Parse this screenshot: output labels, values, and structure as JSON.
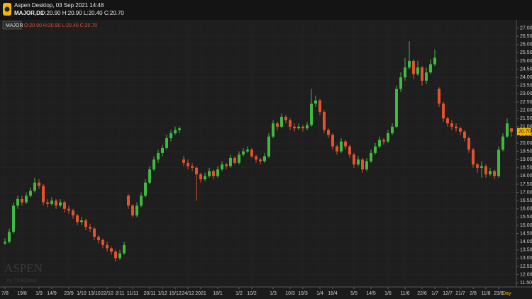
{
  "header": {
    "app": "Aspen Desktop, 03 Sep 2021 14:48",
    "symbol": "MAJOR,D1",
    "ohlc": "O:20.90 H:20.90 L:20.40 C:20.70"
  },
  "watermark": {
    "brand": "ASPEN",
    "by": "by ThaiQuest"
  },
  "chart_data": {
    "type": "candlestick",
    "up_color": "#3fb93f",
    "down_color": "#e2532d",
    "grid": true,
    "period": "Day",
    "last_price": {
      "value": 20.7,
      "label": "20.70"
    },
    "xlim": [
      -0.5,
      119.5
    ],
    "ylim": [
      11.25,
      27.5
    ],
    "xticks": [
      {
        "value": 0,
        "label": "7/8"
      },
      {
        "value": 4,
        "label": "19/8"
      },
      {
        "value": 8,
        "label": "1/9"
      },
      {
        "value": 11,
        "label": "14/9"
      },
      {
        "value": 15,
        "label": "23/9"
      },
      {
        "value": 18,
        "label": "1/10"
      },
      {
        "value": 21,
        "label": "13/10"
      },
      {
        "value": 24,
        "label": "22/10"
      },
      {
        "value": 27,
        "label": "2/11"
      },
      {
        "value": 30,
        "label": "11/11"
      },
      {
        "value": 34,
        "label": "20/11"
      },
      {
        "value": 37,
        "label": "1/12"
      },
      {
        "value": 40,
        "label": "15/12"
      },
      {
        "value": 43,
        "label": "24/12"
      },
      {
        "value": 46,
        "label": "2021"
      },
      {
        "value": 50,
        "label": "18/1"
      },
      {
        "value": 55,
        "label": "1/2"
      },
      {
        "value": 58,
        "label": "10/2"
      },
      {
        "value": 63,
        "label": "1/3"
      },
      {
        "value": 67,
        "label": "10/3"
      },
      {
        "value": 70,
        "label": "19/3"
      },
      {
        "value": 74,
        "label": "1/4"
      },
      {
        "value": 77,
        "label": "16/4"
      },
      {
        "value": 82,
        "label": "5/5"
      },
      {
        "value": 86,
        "label": "14/5"
      },
      {
        "value": 90,
        "label": "1/6"
      },
      {
        "value": 94,
        "label": "11/6"
      },
      {
        "value": 98,
        "label": "22/6"
      },
      {
        "value": 101,
        "label": "1/7"
      },
      {
        "value": 104,
        "label": "12/7"
      },
      {
        "value": 107,
        "label": "21/7"
      },
      {
        "value": 110,
        "label": "2/8"
      },
      {
        "value": 113,
        "label": "11/8"
      },
      {
        "value": 116,
        "label": "23/8"
      }
    ],
    "yticks": [
      {
        "value": 11.5,
        "label": "11.50"
      },
      {
        "value": 12,
        "label": "12.00"
      },
      {
        "value": 12.5,
        "label": "12.50"
      },
      {
        "value": 13,
        "label": "13.00"
      },
      {
        "value": 13.5,
        "label": "13.50"
      },
      {
        "value": 14,
        "label": "14.00"
      },
      {
        "value": 14.5,
        "label": "14.50"
      },
      {
        "value": 15,
        "label": "15.00"
      },
      {
        "value": 15.5,
        "label": "15.50"
      },
      {
        "value": 16,
        "label": "16.00"
      },
      {
        "value": 16.5,
        "label": "16.50"
      },
      {
        "value": 17,
        "label": "17.00"
      },
      {
        "value": 17.5,
        "label": "17.50"
      },
      {
        "value": 18,
        "label": "18.00"
      },
      {
        "value": 18.5,
        "label": "18.50"
      },
      {
        "value": 19,
        "label": "19.00"
      },
      {
        "value": 19.5,
        "label": "19.50"
      },
      {
        "value": 20,
        "label": "20.00"
      },
      {
        "value": 20.5,
        "label": "20.50"
      },
      {
        "value": 21,
        "label": "21.00"
      },
      {
        "value": 21.5,
        "label": "21.50"
      },
      {
        "value": 22,
        "label": "22.00"
      },
      {
        "value": 22.5,
        "label": "22.50"
      },
      {
        "value": 23,
        "label": "23.00"
      },
      {
        "value": 23.5,
        "label": "23.50"
      },
      {
        "value": 24,
        "label": "24.00"
      },
      {
        "value": 24.5,
        "label": "24.50"
      },
      {
        "value": 25,
        "label": "25.00"
      },
      {
        "value": 25.5,
        "label": "25.50"
      },
      {
        "value": 26,
        "label": "26.00"
      },
      {
        "value": 26.5,
        "label": "26.50"
      },
      {
        "value": 27,
        "label": "27.00"
      }
    ],
    "series": [
      {
        "name": "MAJOR",
        "values": [
          [
            13.9,
            14.2,
            13.8,
            14.0
          ],
          [
            14.0,
            14.8,
            13.9,
            14.6
          ],
          [
            14.6,
            16.4,
            14.5,
            16.2
          ],
          [
            16.2,
            16.8,
            16.0,
            16.6
          ],
          [
            16.6,
            16.8,
            16.2,
            16.4
          ],
          [
            16.4,
            17.0,
            16.3,
            16.8
          ],
          [
            16.8,
            17.3,
            16.7,
            17.1
          ],
          [
            17.1,
            17.9,
            17.0,
            17.6
          ],
          [
            17.6,
            17.8,
            17.2,
            17.4
          ],
          [
            17.4,
            17.5,
            16.2,
            16.4
          ],
          [
            16.4,
            16.6,
            16.1,
            16.3
          ],
          [
            16.3,
            16.7,
            16.2,
            16.5
          ],
          [
            16.5,
            16.6,
            16.0,
            16.2
          ],
          [
            16.2,
            16.6,
            16.1,
            16.4
          ],
          [
            16.4,
            16.5,
            15.8,
            16.0
          ],
          [
            16.0,
            16.2,
            15.7,
            15.9
          ],
          [
            15.9,
            16.0,
            15.4,
            15.6
          ],
          [
            15.6,
            15.7,
            15.0,
            15.2
          ],
          [
            15.2,
            15.5,
            15.0,
            15.3
          ],
          [
            15.3,
            15.4,
            14.7,
            14.9
          ],
          [
            14.9,
            15.1,
            14.6,
            14.8
          ],
          [
            14.8,
            14.9,
            14.1,
            14.3
          ],
          [
            14.3,
            14.4,
            13.9,
            14.1
          ],
          [
            14.1,
            14.2,
            13.6,
            13.8
          ],
          [
            13.8,
            14.0,
            13.4,
            13.6
          ],
          [
            13.6,
            13.7,
            13.2,
            13.4
          ],
          [
            13.4,
            13.5,
            12.8,
            13.0
          ],
          [
            13.0,
            13.5,
            12.9,
            13.3
          ],
          [
            13.3,
            14.0,
            13.2,
            13.8
          ],
          [
            16.8,
            16.9,
            16.0,
            16.2
          ],
          [
            16.2,
            16.3,
            15.5,
            15.6
          ],
          [
            15.6,
            16.4,
            15.5,
            16.2
          ],
          [
            16.2,
            17.0,
            16.1,
            16.8
          ],
          [
            16.8,
            17.8,
            16.7,
            17.6
          ],
          [
            17.6,
            18.6,
            17.5,
            18.4
          ],
          [
            18.4,
            19.2,
            18.3,
            19.0
          ],
          [
            19.0,
            19.6,
            18.8,
            19.4
          ],
          [
            19.4,
            19.9,
            19.2,
            19.7
          ],
          [
            19.7,
            20.5,
            19.6,
            20.3
          ],
          [
            20.3,
            20.8,
            20.1,
            20.6
          ],
          [
            20.6,
            21.0,
            20.5,
            20.8
          ],
          [
            20.8,
            21.0,
            20.6,
            20.9
          ],
          [
            19.0,
            19.2,
            18.6,
            18.8
          ],
          [
            18.8,
            19.0,
            18.4,
            18.6
          ],
          [
            18.6,
            18.8,
            18.3,
            18.5
          ],
          [
            18.5,
            18.6,
            16.5,
            18.1
          ],
          [
            18.1,
            18.2,
            17.6,
            17.8
          ],
          [
            17.8,
            18.2,
            17.7,
            18.0
          ],
          [
            18.0,
            18.5,
            17.9,
            18.3
          ],
          [
            18.3,
            18.4,
            17.8,
            18.0
          ],
          [
            18.0,
            18.6,
            17.9,
            18.4
          ],
          [
            18.4,
            18.9,
            18.3,
            18.7
          ],
          [
            18.7,
            18.8,
            18.4,
            18.6
          ],
          [
            18.6,
            19.3,
            18.5,
            19.1
          ],
          [
            19.1,
            19.2,
            18.7,
            18.8
          ],
          [
            18.8,
            19.5,
            18.7,
            19.3
          ],
          [
            19.3,
            19.7,
            19.2,
            19.5
          ],
          [
            19.5,
            19.8,
            19.4,
            19.6
          ],
          [
            19.6,
            19.7,
            19.1,
            19.2
          ],
          [
            19.2,
            19.3,
            18.8,
            19.0
          ],
          [
            19.0,
            19.1,
            18.7,
            18.9
          ],
          [
            18.9,
            19.4,
            18.8,
            19.2
          ],
          [
            19.2,
            20.6,
            19.1,
            20.4
          ],
          [
            20.4,
            21.4,
            20.3,
            21.2
          ],
          [
            21.2,
            21.3,
            20.8,
            21.0
          ],
          [
            21.0,
            21.8,
            20.9,
            21.6
          ],
          [
            21.6,
            21.7,
            21.2,
            21.4
          ],
          [
            21.4,
            21.5,
            20.8,
            21.0
          ],
          [
            21.0,
            21.2,
            20.7,
            20.9
          ],
          [
            20.9,
            21.2,
            20.8,
            21.0
          ],
          [
            21.0,
            21.1,
            20.7,
            20.9
          ],
          [
            20.9,
            21.3,
            20.8,
            21.1
          ],
          [
            21.1,
            23.3,
            21.0,
            22.4
          ],
          [
            22.4,
            22.9,
            22.2,
            22.6
          ],
          [
            22.6,
            22.7,
            21.7,
            21.9
          ],
          [
            21.9,
            22.0,
            20.6,
            20.8
          ],
          [
            20.8,
            20.9,
            20.3,
            20.5
          ],
          [
            20.5,
            20.6,
            19.6,
            19.8
          ],
          [
            19.8,
            19.9,
            19.3,
            19.5
          ],
          [
            19.5,
            20.3,
            19.4,
            20.1
          ],
          [
            20.1,
            20.2,
            19.6,
            19.8
          ],
          [
            19.8,
            19.9,
            19.1,
            19.3
          ],
          [
            19.3,
            19.4,
            18.5,
            18.7
          ],
          [
            18.7,
            19.2,
            18.6,
            19.0
          ],
          [
            19.0,
            19.1,
            18.2,
            18.4
          ],
          [
            18.4,
            19.1,
            18.3,
            18.9
          ],
          [
            18.9,
            19.6,
            18.8,
            19.4
          ],
          [
            19.4,
            20.0,
            19.3,
            19.8
          ],
          [
            19.8,
            20.4,
            19.7,
            20.2
          ],
          [
            20.2,
            20.3,
            19.9,
            20.1
          ],
          [
            20.1,
            20.8,
            20.0,
            20.6
          ],
          [
            20.6,
            21.2,
            20.5,
            21.0
          ],
          [
            21.0,
            23.5,
            20.9,
            23.3
          ],
          [
            23.3,
            24.3,
            23.1,
            24.0
          ],
          [
            24.0,
            25.2,
            23.8,
            24.6
          ],
          [
            24.6,
            26.2,
            24.5,
            25.0
          ],
          [
            25.0,
            25.1,
            23.9,
            24.2
          ],
          [
            24.2,
            25.0,
            24.1,
            24.6
          ],
          [
            24.6,
            24.7,
            23.5,
            23.8
          ],
          [
            23.8,
            24.6,
            23.6,
            24.3
          ],
          [
            24.3,
            25.1,
            24.2,
            24.8
          ],
          [
            24.8,
            25.7,
            24.7,
            25.2
          ],
          [
            23.3,
            23.4,
            22.2,
            22.4
          ],
          [
            22.4,
            22.5,
            21.3,
            21.5
          ],
          [
            21.5,
            21.6,
            21.0,
            21.2
          ],
          [
            21.2,
            21.4,
            20.8,
            21.0
          ],
          [
            21.0,
            21.2,
            20.7,
            20.9
          ],
          [
            20.9,
            21.0,
            20.5,
            20.7
          ],
          [
            20.7,
            20.8,
            20.1,
            20.3
          ],
          [
            20.3,
            20.4,
            19.4,
            19.6
          ],
          [
            19.6,
            19.7,
            18.5,
            18.7
          ],
          [
            18.7,
            18.8,
            18.2,
            18.5
          ],
          [
            18.5,
            18.9,
            17.9,
            18.6
          ],
          [
            18.6,
            18.7,
            17.9,
            18.1
          ],
          [
            18.1,
            18.5,
            18.0,
            18.3
          ],
          [
            18.3,
            18.4,
            17.8,
            18.0
          ],
          [
            18.0,
            19.8,
            17.9,
            19.6
          ],
          [
            19.6,
            20.6,
            19.5,
            20.4
          ],
          [
            20.4,
            21.5,
            20.3,
            21.2
          ],
          [
            20.9,
            20.9,
            20.4,
            20.7
          ]
        ]
      }
    ]
  }
}
